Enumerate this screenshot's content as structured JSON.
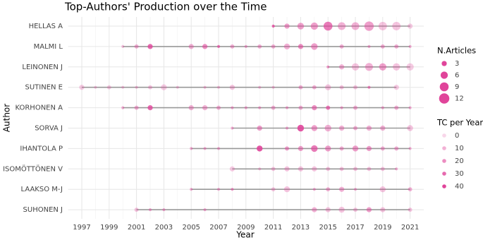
{
  "chart_data": {
    "type": "bubble-timeline",
    "title": "Top-Authors' Production over the Time",
    "x_label": "Year",
    "y_label": "Author",
    "color": "#e0449a",
    "line_color": "#999999",
    "xlim": [
      1996,
      2022
    ],
    "xticks": [
      1997,
      1999,
      2001,
      2003,
      2005,
      2007,
      2009,
      2011,
      2013,
      2015,
      2017,
      2019,
      2021
    ],
    "grid": true,
    "size_legend": {
      "title": "N.Articles",
      "values": [
        3,
        6,
        9,
        12
      ]
    },
    "color_legend": {
      "title": "TC per Year",
      "values": [
        0,
        10,
        20,
        30,
        40
      ]
    },
    "series": [
      {
        "name": "HELLAS A",
        "x": [
          2011,
          2012,
          2013,
          2014,
          2015,
          2016,
          2017,
          2018,
          2019,
          2020,
          2021
        ],
        "sizes": [
          1,
          3,
          5,
          6,
          9,
          7,
          7,
          10,
          8,
          8,
          3
        ],
        "tc": [
          30,
          15,
          15,
          15,
          25,
          10,
          10,
          15,
          5,
          5,
          3
        ]
      },
      {
        "name": "MALMI L",
        "x": [
          2000,
          2001,
          2002,
          2005,
          2006,
          2007,
          2008,
          2009,
          2010,
          2011,
          2012,
          2013,
          2014,
          2016,
          2018,
          2019,
          2020,
          2021
        ],
        "sizes": [
          1,
          2,
          3,
          3,
          3,
          1,
          2,
          1,
          2,
          2,
          4,
          3,
          5,
          2,
          1,
          2,
          2,
          1
        ],
        "tc": [
          5,
          10,
          30,
          10,
          20,
          25,
          10,
          10,
          10,
          10,
          10,
          20,
          15,
          10,
          10,
          10,
          10,
          10
        ]
      },
      {
        "name": "LEINONEN J",
        "x": [
          2015,
          2016,
          2017,
          2018,
          2019,
          2020,
          2021
        ],
        "sizes": [
          1,
          3,
          6,
          7,
          6,
          6,
          6
        ],
        "tc": [
          15,
          10,
          5,
          10,
          15,
          5,
          3
        ]
      },
      {
        "name": "SUTINEN E",
        "x": [
          1997,
          1998,
          1999,
          2000,
          2001,
          2002,
          2003,
          2004,
          2006,
          2007,
          2008,
          2010,
          2011,
          2013,
          2014,
          2015,
          2016,
          2017,
          2018,
          2020
        ],
        "sizes": [
          3,
          1,
          2,
          1,
          1,
          2,
          4,
          1,
          1,
          1,
          3,
          1,
          1,
          2,
          2,
          4,
          2,
          2,
          1,
          3
        ],
        "tc": [
          3,
          3,
          3,
          3,
          5,
          5,
          3,
          3,
          5,
          5,
          5,
          5,
          5,
          10,
          10,
          5,
          5,
          5,
          20,
          3
        ]
      },
      {
        "name": "KORHONEN A",
        "x": [
          2000,
          2001,
          2002,
          2005,
          2006,
          2007,
          2008,
          2009,
          2010,
          2011,
          2012,
          2013,
          2014,
          2015,
          2016,
          2017,
          2019,
          2020,
          2021
        ],
        "sizes": [
          1,
          2,
          3,
          3,
          3,
          2,
          1,
          1,
          1,
          2,
          1,
          2,
          3,
          2,
          1,
          2,
          1,
          2,
          1
        ],
        "tc": [
          10,
          10,
          30,
          10,
          10,
          10,
          10,
          10,
          10,
          10,
          10,
          10,
          20,
          25,
          10,
          10,
          10,
          10,
          10
        ]
      },
      {
        "name": "SORVA J",
        "x": [
          2008,
          2010,
          2012,
          2013,
          2014,
          2015,
          2016,
          2017,
          2018,
          2019,
          2021
        ],
        "sizes": [
          1,
          3,
          1,
          5,
          4,
          5,
          3,
          2,
          3,
          3,
          4
        ],
        "tc": [
          10,
          15,
          10,
          35,
          15,
          10,
          10,
          10,
          10,
          10,
          5
        ]
      },
      {
        "name": "IHANTOLA P",
        "x": [
          2005,
          2006,
          2007,
          2010,
          2012,
          2013,
          2014,
          2015,
          2016,
          2017,
          2018,
          2019,
          2020,
          2021
        ],
        "sizes": [
          1,
          1,
          1,
          4,
          2,
          3,
          5,
          4,
          2,
          4,
          3,
          2,
          2,
          1
        ],
        "tc": [
          10,
          10,
          10,
          35,
          15,
          15,
          25,
          15,
          10,
          15,
          15,
          10,
          10,
          10
        ]
      },
      {
        "name": "ISOMÖTTÖNEN V",
        "x": [
          2008,
          2010,
          2011,
          2012,
          2013,
          2014,
          2015,
          2016,
          2017,
          2018,
          2019,
          2020
        ],
        "sizes": [
          3,
          1,
          2,
          3,
          3,
          3,
          2,
          2,
          2,
          2,
          2,
          1
        ],
        "tc": [
          3,
          5,
          5,
          5,
          5,
          5,
          5,
          5,
          5,
          5,
          5,
          10
        ]
      },
      {
        "name": "LAAKSO M-J",
        "x": [
          2005,
          2007,
          2008,
          2011,
          2012,
          2014,
          2015,
          2016,
          2017,
          2019,
          2021
        ],
        "sizes": [
          1,
          1,
          1,
          2,
          4,
          1,
          2,
          3,
          1,
          4,
          2
        ],
        "tc": [
          10,
          10,
          15,
          5,
          5,
          10,
          10,
          10,
          10,
          5,
          10
        ]
      },
      {
        "name": "SUHONEN J",
        "x": [
          2001,
          2002,
          2003,
          2006,
          2014,
          2015,
          2016,
          2017,
          2018,
          2019,
          2021
        ],
        "sizes": [
          2,
          1,
          1,
          1,
          3,
          3,
          4,
          2,
          3,
          3,
          2
        ],
        "tc": [
          5,
          10,
          10,
          10,
          10,
          5,
          5,
          5,
          15,
          5,
          5
        ]
      }
    ]
  }
}
